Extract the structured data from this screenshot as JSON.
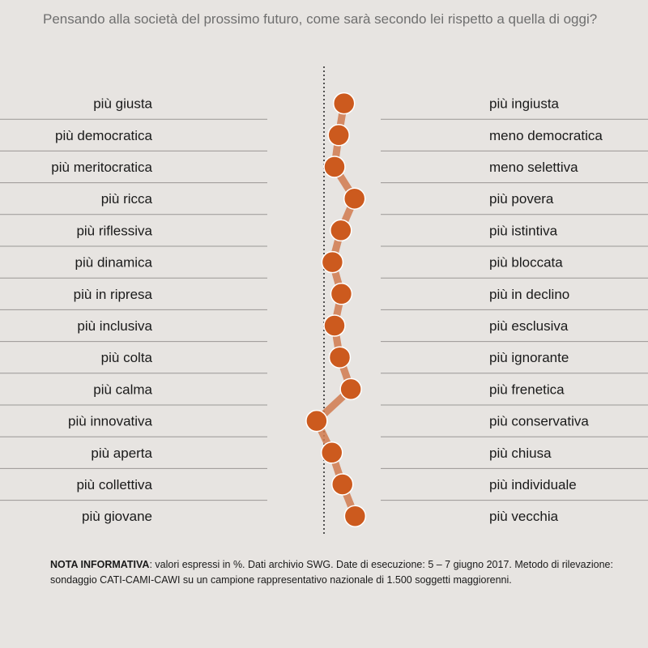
{
  "title": "Pensando alla società del prossimo futuro, come sarà secondo lei rispetto a quella di oggi?",
  "note": {
    "label": "NOTA INFORMATIVA",
    "text": ": valori espressi in %. Dati archivio SWG. Date di esecuzione: 5 – 7 giugno 2017. Metodo di rilevazione: sondaggio CATI-CAMI-CAWI su un campione rappresentativo nazionale di 1.500 soggetti maggiorenni."
  },
  "colors": {
    "point": "#cc5a1e",
    "line": "#d07a4e",
    "background": "#e7e4e1",
    "separator": "#9a9795"
  },
  "chart_data": {
    "type": "line",
    "orientation": "vertical-profile",
    "title": "Pensando alla società del prossimo futuro, come sarà secondo lei rispetto a quella di oggi?",
    "xlim": [
      -100,
      100
    ],
    "center": 0,
    "series": [
      {
        "left_labels": [
          "più giusta",
          "più democratica",
          "più meritocratica",
          "più ricca",
          "più riflessiva",
          "più dinamica",
          "più in ripresa",
          "più inclusiva",
          "più colta",
          "più calma",
          "più innovativa",
          "più aperta",
          "più collettiva",
          "più giovane"
        ],
        "right_labels": [
          "più ingiusta",
          "meno  democratica",
          "meno selettiva",
          "più povera",
          "più istintiva",
          "più bloccata",
          "più in declino",
          "più esclusiva",
          "più ignorante",
          "più frenetica",
          "più conservativa",
          "più chiusa",
          "più individuale",
          "più vecchia"
        ],
        "values": [
          38,
          28,
          20,
          58,
          32,
          16,
          33,
          20,
          30,
          51,
          -14,
          15,
          35,
          59
        ]
      }
    ]
  }
}
